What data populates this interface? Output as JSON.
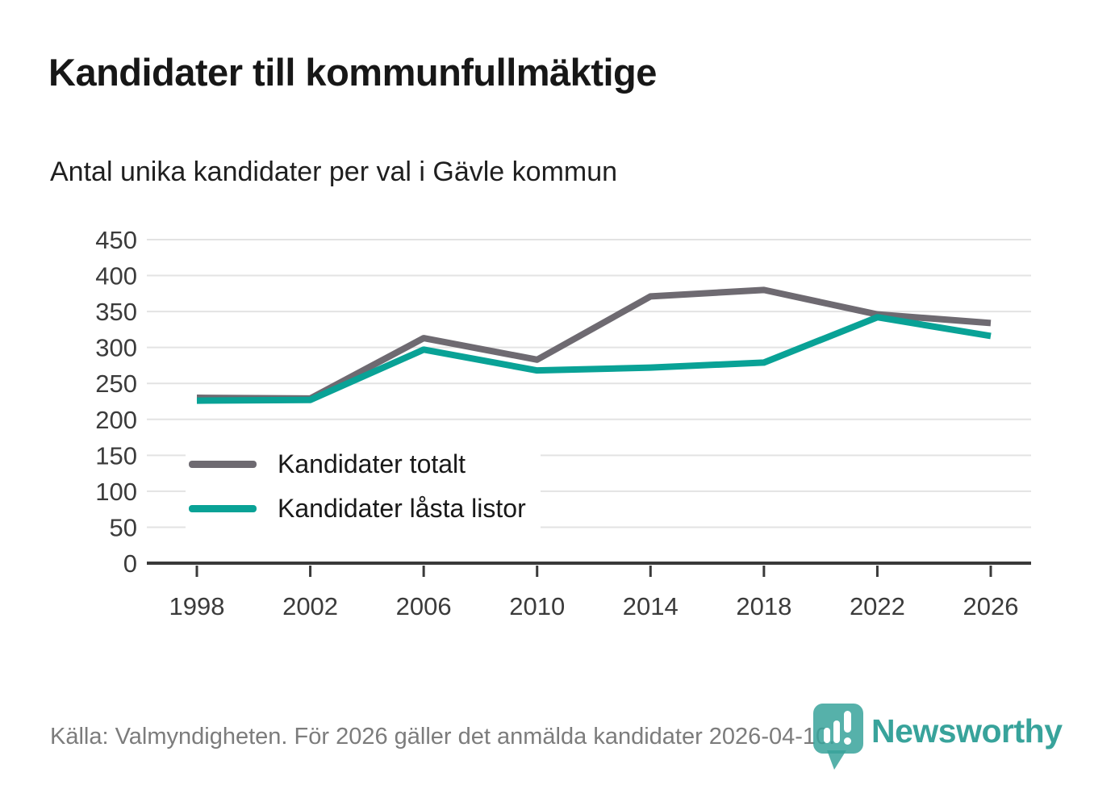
{
  "header": {
    "title": "Kandidater till kommunfullmäktige",
    "subtitle": "Antal unika kandidater per val i Gävle kommun"
  },
  "chart_data": {
    "type": "line",
    "title": "Kandidater till kommunfullmäktige",
    "subtitle": "Antal unika kandidater per val i Gävle kommun",
    "categories": [
      "1998",
      "2002",
      "2006",
      "2010",
      "2014",
      "2018",
      "2022",
      "2026"
    ],
    "series": [
      {
        "name": "Kandidater totalt",
        "color": "#6e6a71",
        "values": [
          230,
          229,
          313,
          283,
          371,
          380,
          346,
          334
        ]
      },
      {
        "name": "Kandidater låsta listor",
        "color": "#09a296",
        "values": [
          226,
          227,
          297,
          268,
          272,
          279,
          342,
          316
        ]
      }
    ],
    "xlabel": "",
    "ylabel": "",
    "ylim": [
      0,
      450
    ],
    "yticks": [
      0,
      50,
      100,
      150,
      200,
      250,
      300,
      350,
      400,
      450
    ],
    "grid": "horizontal",
    "legend_position": "inside-left-middle"
  },
  "footer": {
    "source": "Källa: Valmyndigheten. För 2026 gäller det anmälda kandidater 2026-04-10."
  },
  "branding": {
    "name": "Newsworthy",
    "color": "#38a39b"
  },
  "colors": {
    "background": "#ffffff",
    "grid": "#e3e3e3",
    "axis": "#3a3a3a",
    "title_text": "#171717",
    "footer_text": "#7c7c7c"
  }
}
